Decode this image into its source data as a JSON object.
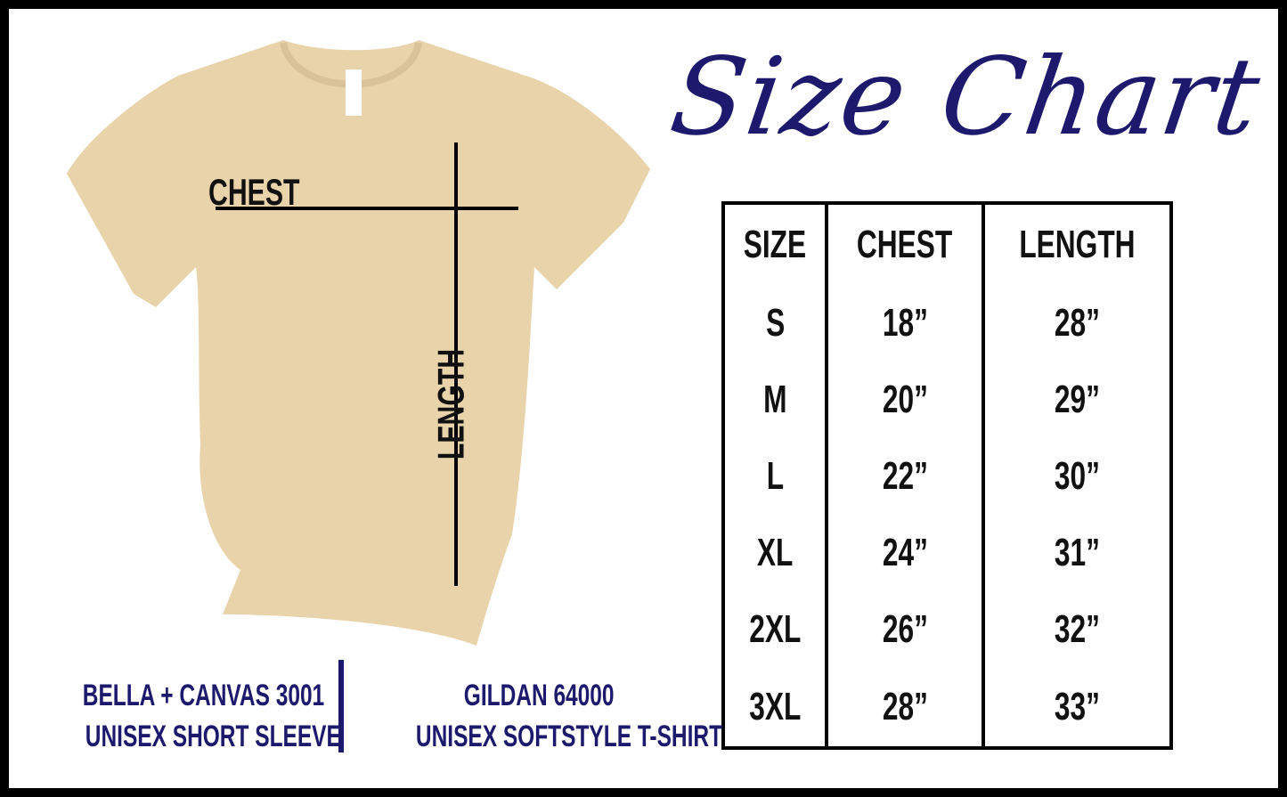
{
  "title": "Size Chart",
  "shirt_labels": {
    "chest": "CHEST",
    "length": "LENGTH"
  },
  "table": {
    "headers": [
      "SIZE",
      "CHEST",
      "LENGTH"
    ],
    "rows": [
      [
        "S",
        "18”",
        "28”"
      ],
      [
        "M",
        "20”",
        "29”"
      ],
      [
        "L",
        "22”",
        "30”"
      ],
      [
        "XL",
        "24”",
        "31”"
      ],
      [
        "2XL",
        "26”",
        "32”"
      ],
      [
        "3XL",
        "28”",
        "33”"
      ]
    ]
  },
  "brands": [
    {
      "line1": "BELLA + CANVAS 3001",
      "line2": "UNISEX SHORT SLEEVE"
    },
    {
      "line1": "GILDAN 64000",
      "line2": "UNISEX SOFTSTYLE T-SHIRT"
    }
  ],
  "colors": {
    "accent": "#1d1a6e",
    "shirt": "#e8d3ab"
  }
}
